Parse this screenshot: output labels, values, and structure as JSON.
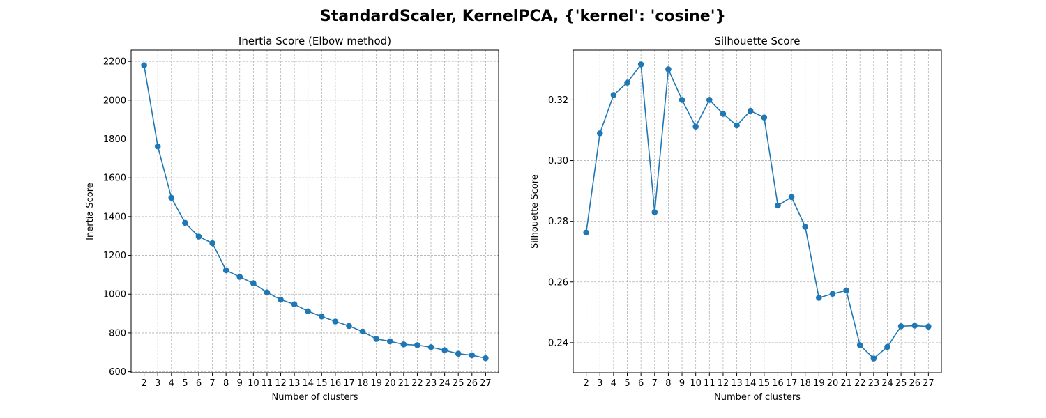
{
  "figure": {
    "title": "StandardScaler, KernelPCA, {'kernel': 'cosine'}"
  },
  "chart_data": [
    {
      "type": "line",
      "title": "Inertia Score (Elbow method)",
      "xlabel": "Number of clusters",
      "ylabel": "Inertia Score",
      "x": [
        2,
        3,
        4,
        5,
        6,
        7,
        8,
        9,
        10,
        11,
        12,
        13,
        14,
        15,
        16,
        17,
        18,
        19,
        20,
        21,
        22,
        23,
        24,
        25,
        26,
        27
      ],
      "series": [
        {
          "values": [
            2180,
            1762,
            1497,
            1368,
            1297,
            1263,
            1123,
            1089,
            1056,
            1009,
            972,
            948,
            912,
            885,
            859,
            836,
            807,
            769,
            757,
            741,
            737,
            727,
            711,
            693,
            685,
            670
          ],
          "color": "#1f77b4",
          "marker": "circle"
        }
      ],
      "yticks": [
        600,
        800,
        1000,
        1200,
        1400,
        1600,
        1800,
        2000,
        2200
      ],
      "ylim": [
        595,
        2258
      ],
      "xlim": [
        1.05,
        27.95
      ],
      "grid": true
    },
    {
      "type": "line",
      "title": "Silhouette Score",
      "xlabel": "Number of clusters",
      "ylabel": "Silhouette Score",
      "x": [
        2,
        3,
        4,
        5,
        6,
        7,
        8,
        9,
        10,
        11,
        12,
        13,
        14,
        15,
        16,
        17,
        18,
        19,
        20,
        21,
        22,
        23,
        24,
        25,
        26,
        27
      ],
      "series": [
        {
          "values": [
            0.2763,
            0.309,
            0.3216,
            0.3257,
            0.3317,
            0.283,
            0.3301,
            0.32,
            0.3112,
            0.32,
            0.3154,
            0.3116,
            0.3164,
            0.3142,
            0.2852,
            0.288,
            0.2782,
            0.2548,
            0.2561,
            0.2572,
            0.2392,
            0.2348,
            0.2386,
            0.2454,
            0.2456,
            0.2453
          ],
          "color": "#1f77b4",
          "marker": "circle"
        }
      ],
      "yticks": [
        0.24,
        0.26,
        0.28,
        0.3,
        0.32
      ],
      "ytick_labels": [
        "0.24",
        "0.26",
        "0.28",
        "0.30",
        "0.32"
      ],
      "ylim": [
        0.2301,
        0.3364
      ],
      "xlim": [
        1.05,
        27.95
      ],
      "grid": true
    }
  ]
}
